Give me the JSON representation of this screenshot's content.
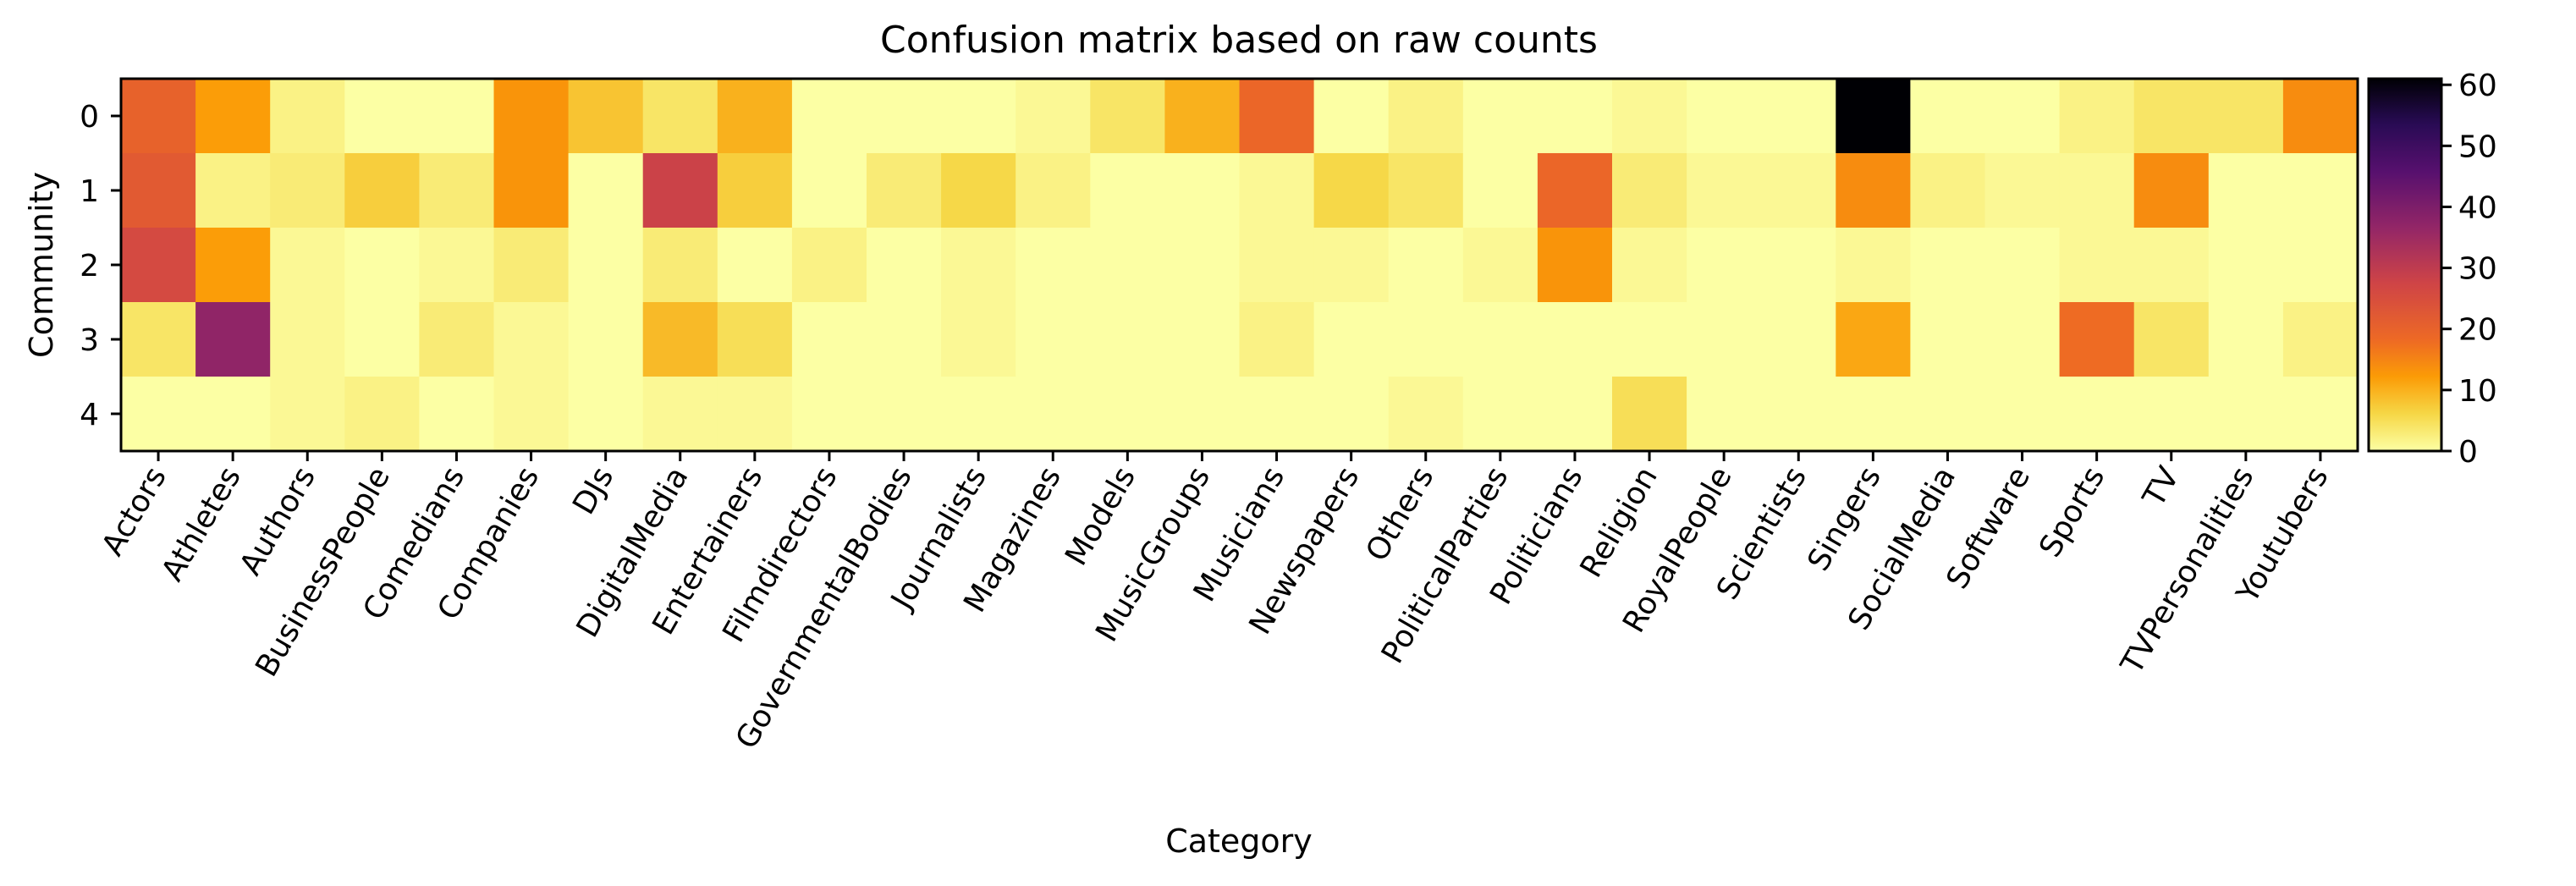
{
  "chart_data": {
    "type": "heatmap",
    "title": "Confusion matrix based on raw counts",
    "xlabel": "Category",
    "ylabel": "Community",
    "colormap": "inferno_r",
    "colorbar": {
      "min": 0,
      "max": 61,
      "ticks": [
        0,
        10,
        20,
        30,
        40,
        50,
        60
      ]
    },
    "rows": [
      "0",
      "1",
      "2",
      "3",
      "4"
    ],
    "categories": [
      "Actors",
      "Athletes",
      "Authors",
      "BusinessPeople",
      "Comedians",
      "Companies",
      "DJs",
      "DigitalMedia",
      "Entertainers",
      "Filmdirectors",
      "GovernmentalBodies",
      "Journalists",
      "Magazines",
      "Models",
      "MusicGroups",
      "Musicians",
      "Newspapers",
      "Others",
      "PoliticalParties",
      "Politicians",
      "Religion",
      "RoyalPeople",
      "Scientists",
      "Singers",
      "SocialMedia",
      "Software",
      "Sports",
      "TV",
      "TVPersonalities",
      "Youtubers"
    ],
    "values": [
      [
        20,
        12,
        2,
        0,
        0,
        13,
        8,
        4,
        10,
        0,
        0,
        0,
        1,
        4,
        10,
        19,
        0,
        2,
        0,
        0,
        1,
        0,
        0,
        61,
        0,
        0,
        2,
        4,
        4,
        14
      ],
      [
        22,
        2,
        3,
        7,
        3,
        13,
        0,
        28,
        7,
        0,
        3,
        6,
        2,
        0,
        0,
        1,
        6,
        4,
        0,
        19,
        3,
        1,
        1,
        14,
        2,
        1,
        1,
        14,
        0,
        0
      ],
      [
        26,
        12,
        1,
        0,
        1,
        3,
        0,
        3,
        0,
        2,
        0,
        1,
        0,
        0,
        0,
        1,
        1,
        0,
        1,
        13,
        1,
        0,
        0,
        1,
        0,
        0,
        1,
        1,
        0,
        0
      ],
      [
        4,
        37,
        1,
        0,
        3,
        1,
        0,
        9,
        5,
        0,
        0,
        1,
        0,
        0,
        0,
        2,
        0,
        0,
        0,
        0,
        0,
        0,
        0,
        11,
        0,
        0,
        18,
        4,
        0,
        2
      ],
      [
        0,
        0,
        1,
        2,
        0,
        1,
        0,
        1,
        1,
        0,
        0,
        0,
        0,
        0,
        0,
        0,
        0,
        1,
        0,
        0,
        5,
        0,
        0,
        0,
        0,
        0,
        0,
        0,
        0,
        0
      ]
    ]
  }
}
